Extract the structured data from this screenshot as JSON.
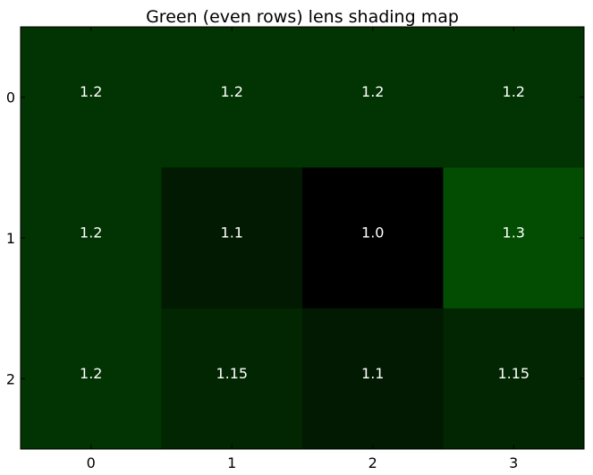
{
  "chart_data": {
    "type": "heatmap",
    "title": "Green (even rows) lens shading map",
    "x_ticks": [
      "0",
      "1",
      "2",
      "3"
    ],
    "y_ticks": [
      "0",
      "1",
      "2"
    ],
    "values": [
      [
        1.2,
        1.2,
        1.2,
        1.2
      ],
      [
        1.2,
        1.1,
        1.0,
        1.3
      ],
      [
        1.2,
        1.15,
        1.1,
        1.15
      ]
    ],
    "labels": [
      [
        "1.2",
        "1.2",
        "1.2",
        "1.2"
      ],
      [
        "1.2",
        "1.1",
        "1.0",
        "1.3"
      ],
      [
        "1.2",
        "1.15",
        "1.1",
        "1.15"
      ]
    ],
    "colormap": {
      "min_value": 1.0,
      "max_value": 1.3,
      "min_color": "#000000",
      "max_color": "#034d03"
    },
    "grid": false
  }
}
